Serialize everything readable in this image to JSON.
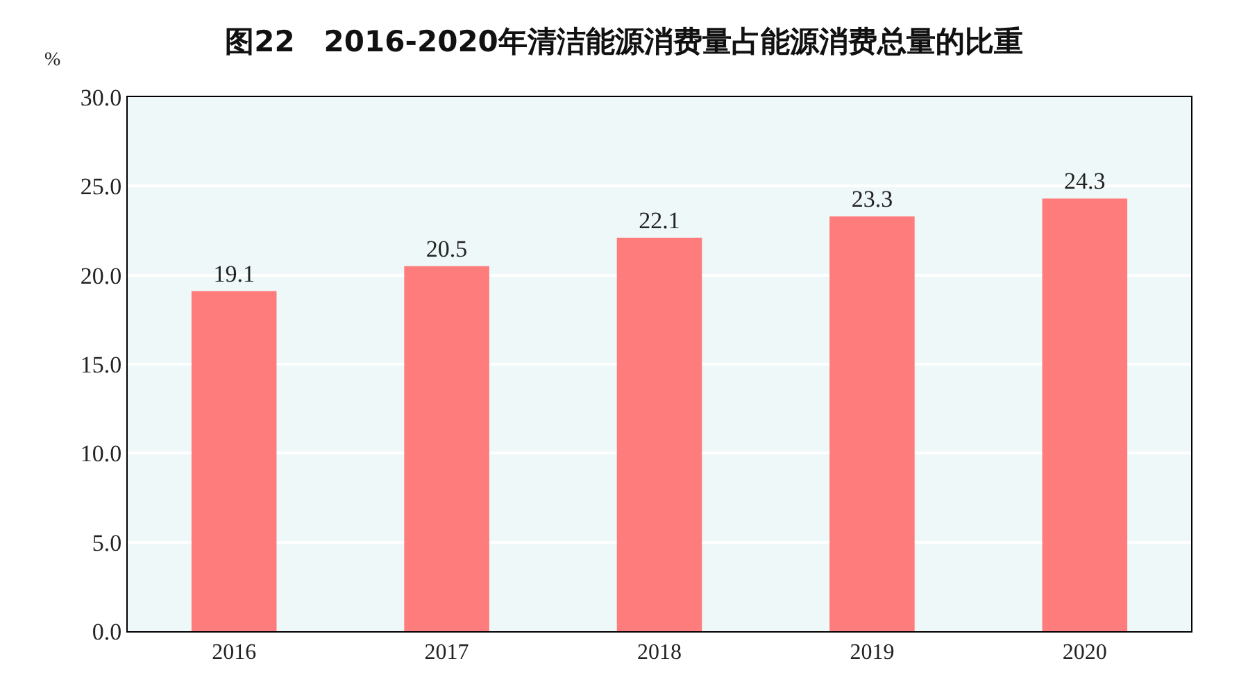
{
  "chart_data": {
    "type": "bar",
    "title": "图22　2016-2020年清洁能源消费量占能源消费总量的比重",
    "ylabel": "%",
    "categories": [
      "2016",
      "2017",
      "2018",
      "2019",
      "2020"
    ],
    "values": [
      19.1,
      20.5,
      22.1,
      23.3,
      24.3
    ],
    "color": "#ff7c7c",
    "ylim": [
      0,
      30
    ],
    "yticks": [
      {
        "value": 0,
        "label": "0.0"
      },
      {
        "value": 5,
        "label": "5.0"
      },
      {
        "value": 10,
        "label": "10.0"
      },
      {
        "value": 15,
        "label": "15.0"
      },
      {
        "value": 20,
        "label": "20.0"
      },
      {
        "value": 25,
        "label": "25.0"
      },
      {
        "value": 30,
        "label": "30.0"
      }
    ],
    "grid": "y",
    "data_labels": true
  }
}
